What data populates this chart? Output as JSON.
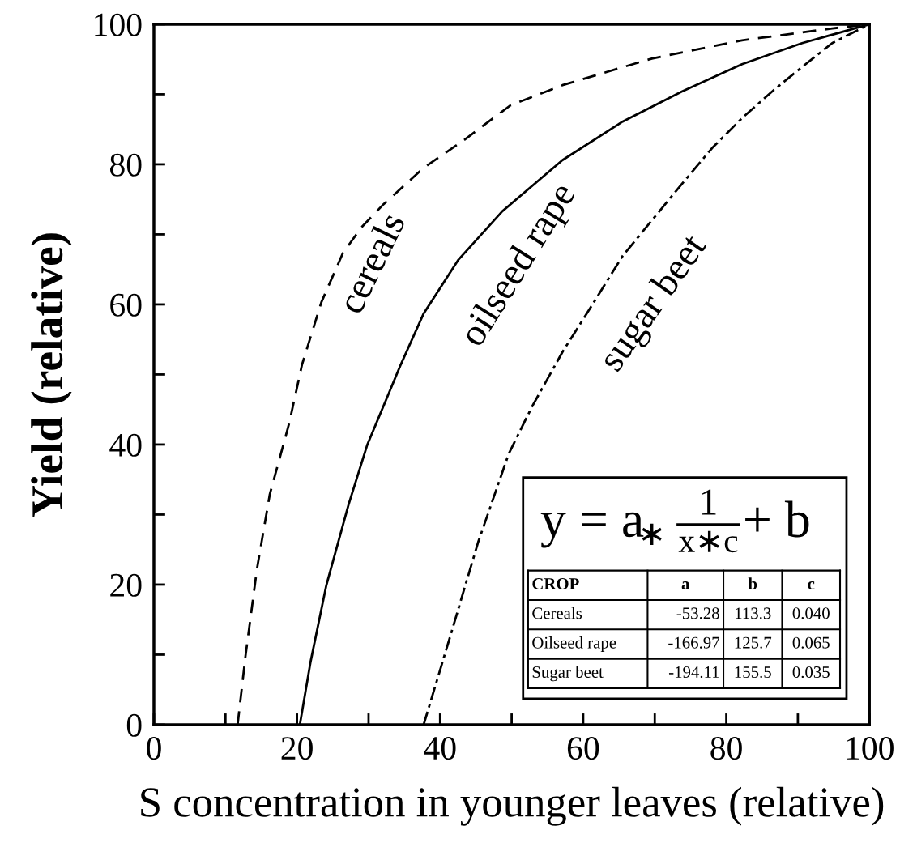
{
  "chart_data": {
    "type": "line",
    "xlabel": "S concentration in younger leaves (relative)",
    "ylabel": "Yield (relative)",
    "xlim": [
      0,
      100
    ],
    "ylim": [
      0,
      100
    ],
    "xticks": [
      0,
      {
        "value": 10,
        "label": null
      },
      20,
      {
        "value": 30,
        "label": null
      },
      40,
      {
        "value": 50,
        "label": null
      },
      60,
      {
        "value": 70,
        "label": null
      },
      80,
      {
        "value": 90,
        "label": null
      },
      100
    ],
    "yticks": [
      0,
      {
        "value": 10,
        "label": null
      },
      20,
      {
        "value": 30,
        "label": null
      },
      40,
      {
        "value": 50,
        "label": null
      },
      60,
      {
        "value": 70,
        "label": null
      },
      80,
      {
        "value": 90,
        "label": null
      },
      100
    ],
    "grid": false,
    "legend": false,
    "marker": "none",
    "series": [
      {
        "name": "cereals",
        "color": "#000000",
        "line_style": "dashed",
        "x": [
          11.7,
          12.8,
          14.4,
          16.2,
          18.9,
          20.7,
          23.4,
          26.4,
          29.0,
          32.0,
          37.7,
          43.4,
          49.8,
          57.1,
          69.6,
          82.2,
          94.8,
          100
        ],
        "values": [
          0,
          9.8,
          22.2,
          32.9,
          43.0,
          51.4,
          60.3,
          67.3,
          71.0,
          74.2,
          79.5,
          83.5,
          88.4,
          91.3,
          95.1,
          97.7,
          99.4,
          100
        ]
      },
      {
        "name": "oilseed rape",
        "color": "#000000",
        "line_style": "solid",
        "x": [
          20.4,
          21.9,
          24.1,
          27.2,
          29.8,
          32.5,
          34.5,
          37.7,
          42.5,
          48.7,
          57.1,
          65.5,
          73.8,
          82.2,
          90.6,
          100
        ],
        "values": [
          0,
          9.0,
          19.9,
          31.4,
          39.9,
          46.5,
          51.4,
          58.7,
          66.3,
          73.3,
          80.6,
          86.1,
          90.4,
          94.3,
          97.3,
          100
        ]
      },
      {
        "name": "sugar beet",
        "color": "#000000",
        "line_style": "dashdot",
        "x": [
          37.7,
          41.5,
          45.3,
          49.6,
          52.9,
          57.1,
          61.3,
          65.5,
          69.6,
          73.8,
          78.0,
          82.2,
          86.4,
          90.6,
          94.8,
          100
        ],
        "values": [
          0,
          12.9,
          26.0,
          38.7,
          45.5,
          53.2,
          60.0,
          66.9,
          72.0,
          77.2,
          82.3,
          86.6,
          90.4,
          93.9,
          97.3,
          100
        ]
      }
    ],
    "annotations": [
      "y = a",
      "∗",
      "1",
      "x∗c",
      "+ b",
      "CROP",
      "a",
      "b",
      "c",
      "Cereals",
      "-53.28",
      "113.3",
      "0.040",
      "Oilseed rape",
      "-166.97",
      "125.7",
      "0.065",
      "Sugar beet",
      "-194.11",
      "155.5",
      "0.035"
    ]
  }
}
